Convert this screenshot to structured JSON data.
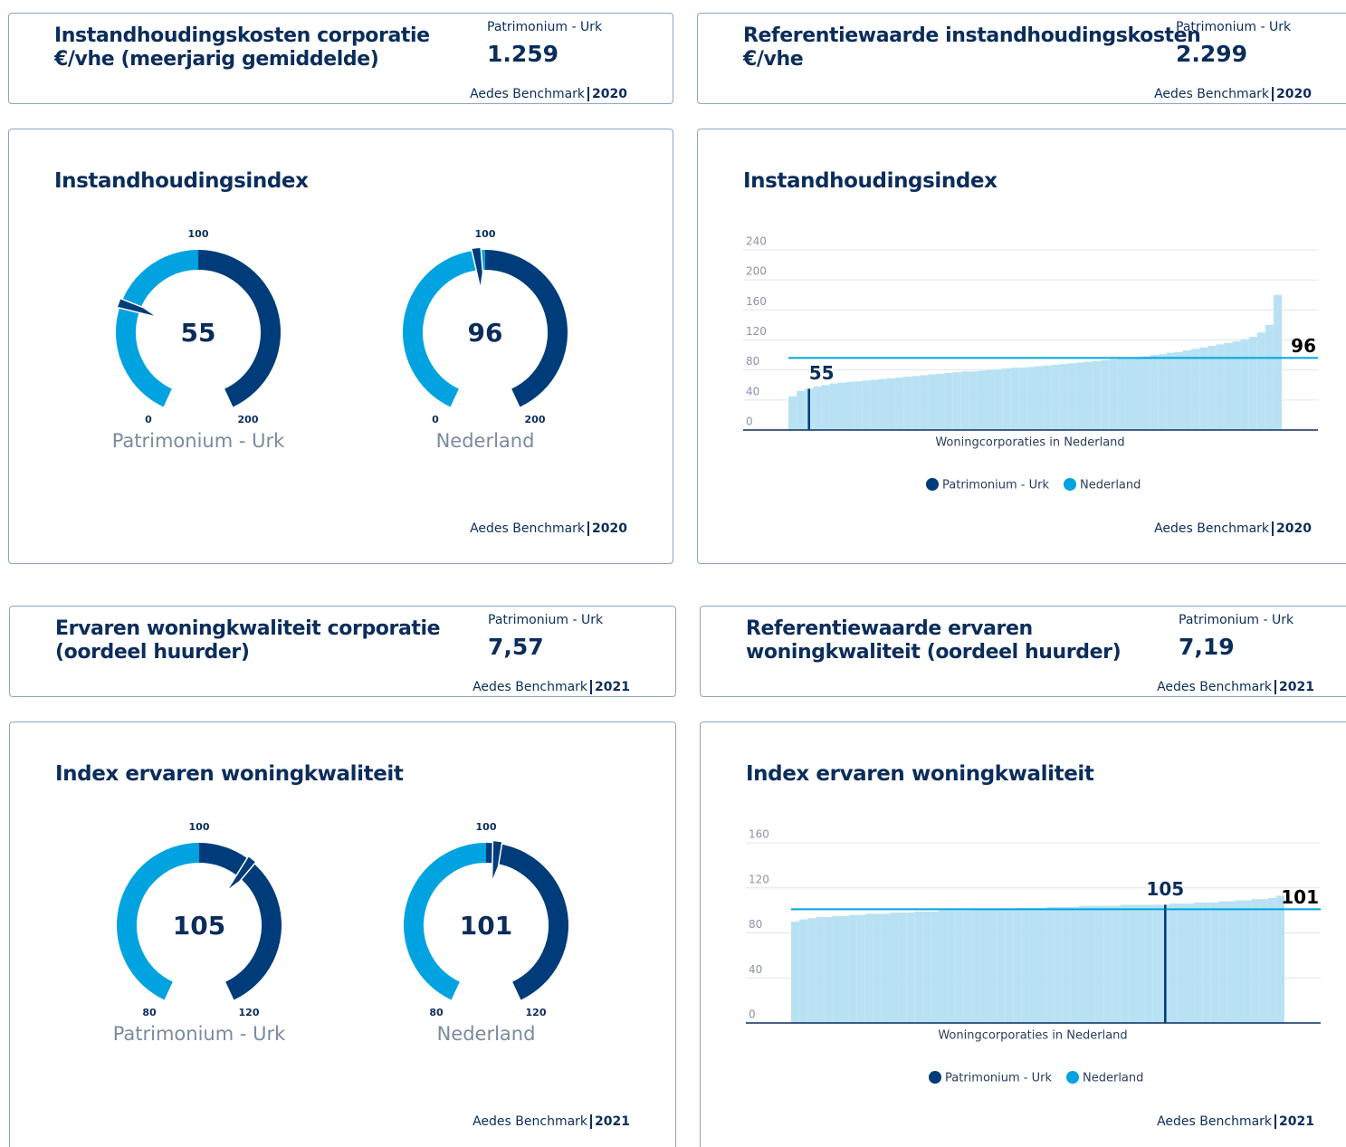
{
  "cards": [
    {
      "title": [
        "Instandhoudingskosten corporatie",
        "€/vhe (meerjarig gemiddelde)"
      ],
      "org": "Patrimonium - Urk",
      "value": "1.259",
      "source": "Aedes Benchmark",
      "year": "2020"
    },
    {
      "title": [
        "Referentiewaarde instandhoudingskosten",
        "€/vhe"
      ],
      "org": "Patrimonium - Urk",
      "value": "2.299",
      "source": "Aedes Benchmark",
      "year": "2020"
    },
    {
      "title": [
        "Ervaren woningkwaliteit corporatie",
        "(oordeel huurder)"
      ],
      "org": "Patrimonium - Urk",
      "value": "7,57",
      "source": "Aedes Benchmark",
      "year": "2021"
    },
    {
      "title": [
        "Referentiewaarde ervaren",
        "woningkwaliteit (oordeel huurder)"
      ],
      "org": "Patrimonium - Urk",
      "value": "7,19",
      "source": "Aedes Benchmark",
      "year": "2021"
    }
  ],
  "chart_data": [
    {
      "type": "gauge",
      "title": "Instandhoudingsindex",
      "colors": [
        "#00a3e0",
        "#003b7a"
      ],
      "gauges": [
        {
          "name": "Patrimonium - Urk",
          "value": 55,
          "min": 0,
          "mid": 100,
          "max": 200
        },
        {
          "name": "Nederland",
          "value": 96,
          "min": 0,
          "mid": 100,
          "max": 200
        }
      ],
      "source": "Aedes Benchmark",
      "year": "2020"
    },
    {
      "type": "distribution",
      "title": "Instandhoudingsindex",
      "xlabel": "Woningcorporaties in Nederland",
      "ylim": [
        0,
        240
      ],
      "yticks": [
        0,
        40,
        80,
        120,
        160,
        200,
        240
      ],
      "grid": true,
      "color": "#b8e2f4",
      "values": [
        45,
        52,
        55,
        58,
        60,
        62,
        63,
        64,
        65,
        66,
        67,
        68,
        69,
        70,
        71,
        72,
        73,
        74,
        75,
        76,
        77,
        78,
        78,
        79,
        80,
        81,
        82,
        83,
        83,
        84,
        85,
        86,
        87,
        88,
        89,
        90,
        91,
        92,
        93,
        94,
        95,
        96,
        97,
        98,
        100,
        101,
        103,
        104,
        106,
        108,
        110,
        112,
        114,
        116,
        118,
        121,
        124,
        130,
        140,
        180
      ],
      "highlight_index": 2,
      "reference": 96,
      "series": [
        {
          "name": "Patrimonium - Urk",
          "color": "#003b7a"
        },
        {
          "name": "Nederland",
          "color": "#00a3e0"
        }
      ],
      "source": "Aedes Benchmark",
      "year": "2020"
    },
    {
      "type": "gauge",
      "title": "Index ervaren woningkwaliteit",
      "colors": [
        "#00a3e0",
        "#003b7a"
      ],
      "gauges": [
        {
          "name": "Patrimonium - Urk",
          "value": 105,
          "min": 80,
          "mid": 100,
          "max": 120
        },
        {
          "name": "Nederland",
          "value": 101,
          "min": 80,
          "mid": 100,
          "max": 120
        }
      ],
      "source": "Aedes Benchmark",
      "year": "2021"
    },
    {
      "type": "distribution",
      "title": "Index ervaren woningkwaliteit",
      "xlabel": "Woningcorporaties in Nederland",
      "ylim": [
        0,
        160
      ],
      "yticks": [
        0,
        40,
        80,
        120,
        160
      ],
      "grid": true,
      "color": "#b8e2f4",
      "values": [
        90,
        92,
        93,
        94,
        94,
        95,
        95,
        96,
        96,
        97,
        97,
        97,
        98,
        98,
        98,
        99,
        99,
        99,
        100,
        100,
        100,
        100,
        101,
        101,
        101,
        101,
        101,
        102,
        102,
        102,
        102,
        103,
        103,
        103,
        103,
        104,
        104,
        104,
        104,
        104,
        105,
        105,
        105,
        105,
        105,
        105,
        106,
        106,
        106,
        107,
        107,
        107,
        108,
        108,
        109,
        109,
        110,
        110,
        111,
        113
      ],
      "highlight_index": 45,
      "reference": 101,
      "series": [
        {
          "name": "Patrimonium - Urk",
          "color": "#003b7a"
        },
        {
          "name": "Nederland",
          "color": "#00a3e0"
        }
      ],
      "source": "Aedes Benchmark",
      "year": "2021"
    }
  ]
}
